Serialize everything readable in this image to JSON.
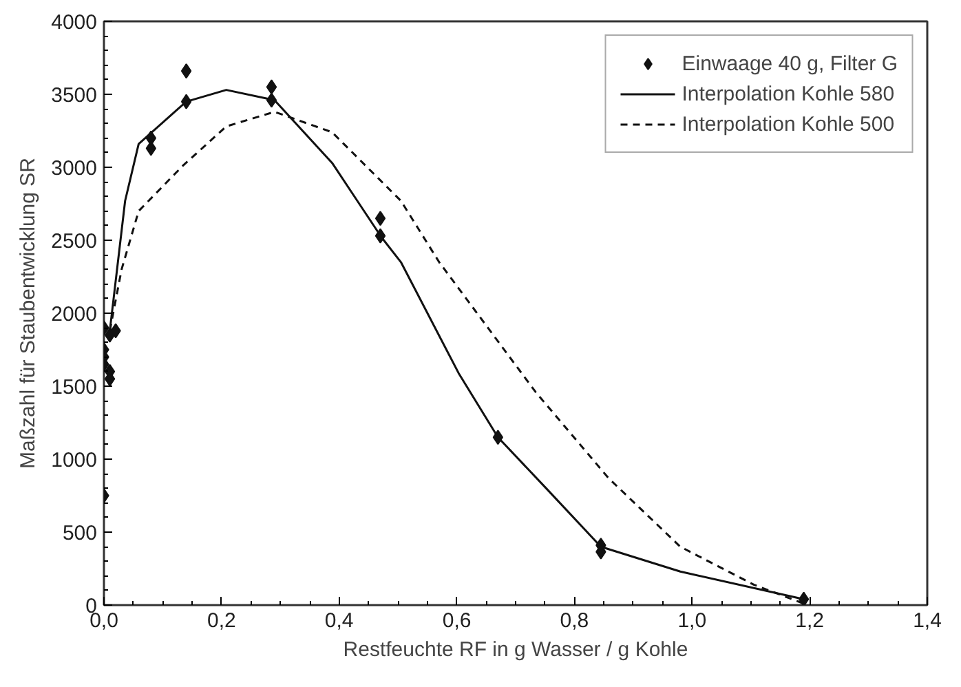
{
  "chart_data": {
    "type": "scatter",
    "xlabel": "Restfeuchte RF in g Wasser / g Kohle",
    "ylabel": "Maßzahl für Staubentwicklung SR",
    "xlim": [
      0,
      1.4
    ],
    "ylim": [
      0,
      4000
    ],
    "xticks": [
      {
        "value": 0,
        "label": "0,0"
      },
      {
        "value": 0.2,
        "label": "0,2"
      },
      {
        "value": 0.4,
        "label": "0,4"
      },
      {
        "value": 0.6,
        "label": "0,6"
      },
      {
        "value": 0.8,
        "label": "0,8"
      },
      {
        "value": 1.0,
        "label": "1,0"
      },
      {
        "value": 1.2,
        "label": "1,2"
      },
      {
        "value": 1.4,
        "label": "1,4"
      }
    ],
    "yticks": [
      0,
      500,
      1000,
      1500,
      2000,
      2500,
      3000,
      3500,
      4000
    ],
    "grid": false,
    "legend": "top right",
    "series": [
      {
        "name": "Einwaage 40 g, Filter G",
        "marker": "diamond",
        "color": "#111111",
        "x": [
          0,
          0,
          0,
          0,
          0,
          0.01,
          0.01,
          0.01,
          0.02,
          0.08,
          0.08,
          0.14,
          0.14,
          0.285,
          0.285,
          0.47,
          0.47,
          0.67,
          0.845,
          0.845,
          1.19
        ],
        "values": [
          750,
          1900,
          1750,
          1700,
          1650,
          1600,
          1550,
          1850,
          1880,
          3200,
          3130,
          3660,
          3450,
          3550,
          3460,
          2650,
          2530,
          1150,
          410,
          365,
          40
        ]
      },
      {
        "name": "Interpolation Kohle 580",
        "type": "line",
        "line_style": "solid",
        "color": "#111111",
        "x": [
          0.01,
          0.036,
          0.059,
          0.14,
          0.208,
          0.29,
          0.388,
          0.472,
          0.505,
          0.603,
          0.67,
          0.752,
          0.845,
          0.98,
          1.19
        ],
        "values": [
          1880,
          2770,
          3160,
          3450,
          3530,
          3460,
          3030,
          2520,
          2350,
          1590,
          1150,
          800,
          400,
          230,
          40
        ]
      },
      {
        "name": "Interpolation Kohle 500",
        "type": "line",
        "line_style": "dashed",
        "color": "#111111",
        "x": [
          0.01,
          0.03,
          0.059,
          0.134,
          0.208,
          0.29,
          0.388,
          0.505,
          0.57,
          0.734,
          0.858,
          0.98,
          1.105,
          1.19
        ],
        "values": [
          1880,
          2300,
          2700,
          3010,
          3280,
          3380,
          3240,
          2770,
          2350,
          1460,
          870,
          400,
          140,
          10
        ]
      }
    ]
  }
}
